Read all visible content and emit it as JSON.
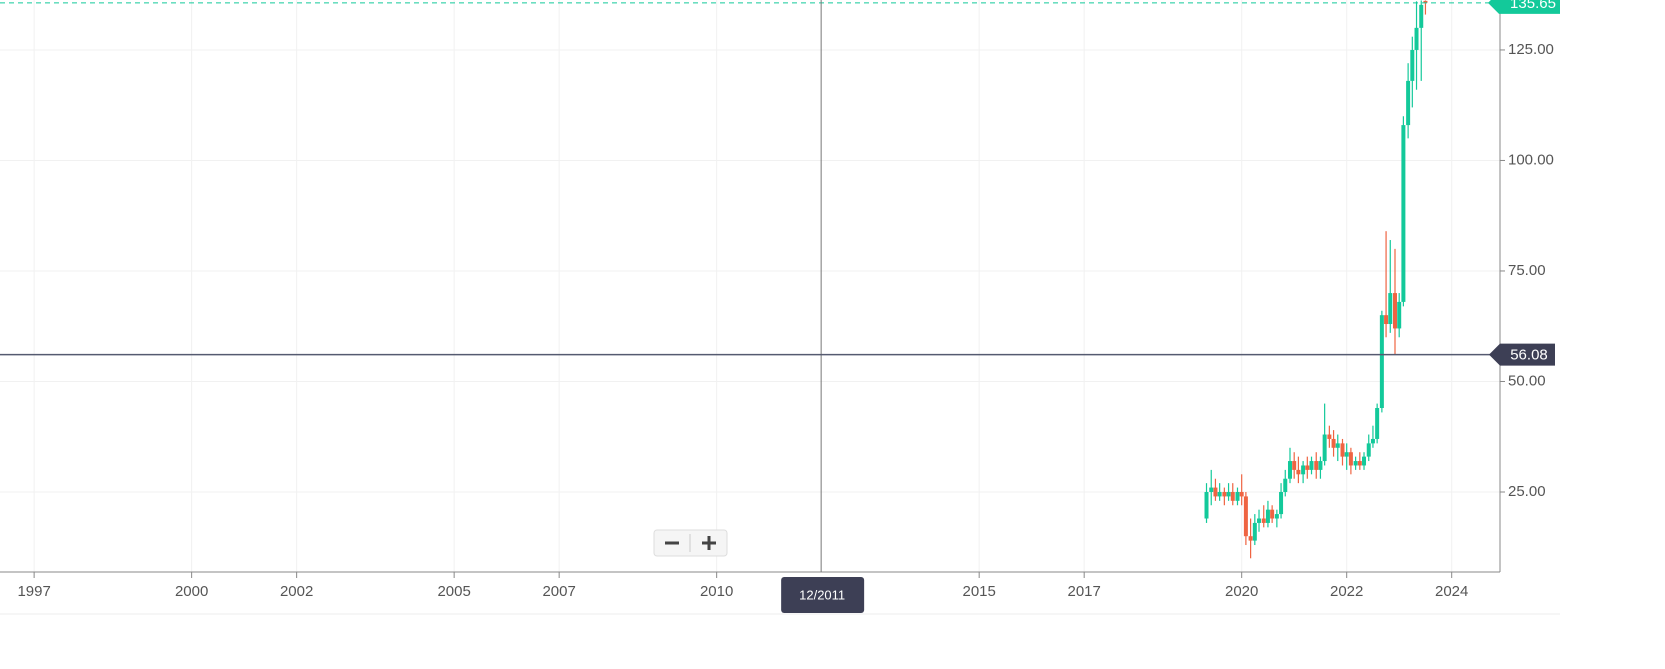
{
  "chart_data": {
    "type": "candlestick",
    "x": [
      2019.33,
      2019.42,
      2019.5,
      2019.58,
      2019.67,
      2019.75,
      2019.83,
      2019.92,
      2020,
      2020.08,
      2020.17,
      2020.25,
      2020.33,
      2020.42,
      2020.5,
      2020.58,
      2020.67,
      2020.75,
      2020.83,
      2020.92,
      2021,
      2021.08,
      2021.17,
      2021.25,
      2021.33,
      2021.42,
      2021.5,
      2021.58,
      2021.67,
      2021.75,
      2021.83,
      2021.92,
      2022,
      2022.08,
      2022.17,
      2022.25,
      2022.33,
      2022.42,
      2022.5,
      2022.58,
      2022.67,
      2022.75,
      2022.83,
      2022.92,
      2023,
      2023.08,
      2023.17,
      2023.25,
      2023.33,
      2023.42,
      2023.5
    ],
    "open": [
      19,
      25,
      26,
      24,
      25,
      24,
      25,
      23,
      25,
      24,
      15,
      14,
      18,
      19,
      18,
      21,
      19,
      20,
      25,
      28,
      32,
      30,
      29,
      31,
      30,
      32,
      30,
      32,
      38,
      37,
      35,
      36,
      33,
      34,
      31,
      32,
      31,
      33,
      36,
      37,
      44,
      65,
      63,
      70,
      62,
      68,
      108,
      118,
      125,
      130,
      136.1
    ],
    "high": [
      27,
      30,
      28,
      27,
      26,
      27,
      27,
      26,
      29,
      25,
      19,
      20,
      21,
      22,
      23,
      22,
      21,
      27,
      30,
      35,
      34,
      33,
      32,
      33,
      33,
      34,
      33,
      45,
      40,
      39,
      38,
      37,
      36,
      35,
      33,
      34,
      34,
      38,
      40,
      45,
      66,
      84,
      82,
      80,
      70,
      110,
      122,
      128,
      136,
      136.2,
      136.2
    ],
    "low": [
      18,
      22,
      23,
      23,
      22,
      23,
      22,
      22,
      22,
      13,
      10,
      13,
      16,
      17,
      17,
      18,
      17,
      19,
      24,
      27,
      28,
      27,
      27,
      28,
      29,
      28,
      28,
      31,
      35,
      33,
      32,
      31,
      30,
      29,
      30,
      30,
      30,
      32,
      35,
      36,
      43,
      60,
      61,
      56,
      60,
      67,
      105,
      112,
      116,
      118,
      133
    ],
    "close": [
      25,
      26,
      24,
      25,
      24,
      25,
      23,
      25,
      24,
      15,
      14,
      18,
      19,
      18,
      21,
      19,
      20,
      25,
      28,
      32,
      30,
      29,
      31,
      30,
      32,
      30,
      32,
      38,
      37,
      35,
      36,
      33,
      34,
      31,
      32,
      31,
      33,
      36,
      37,
      44,
      65,
      63,
      70,
      62,
      68,
      108,
      118,
      125,
      130,
      135.2,
      135.65
    ],
    "up_color": "#13c99a",
    "down_color": "#ef6442",
    "xlim": [
      1996.35,
      2024.92
    ],
    "ylim": [
      6.9,
      136.3
    ],
    "xticks": [
      1997,
      2000,
      2002,
      2005,
      2007,
      2010,
      2015,
      2017,
      2020,
      2022,
      2024
    ],
    "yticks": [
      {
        "value": 25,
        "label": "25.00"
      },
      {
        "value": 50,
        "label": "50.00"
      },
      {
        "value": 75,
        "label": "75.00"
      },
      {
        "value": 100,
        "label": "100.00"
      },
      {
        "value": 125,
        "label": "125.00"
      }
    ],
    "grid": true,
    "last_price": 135.65,
    "crosshair": {
      "x": {
        "value": 2011.99,
        "label": "12/2011"
      },
      "y": 56.08
    }
  }
}
